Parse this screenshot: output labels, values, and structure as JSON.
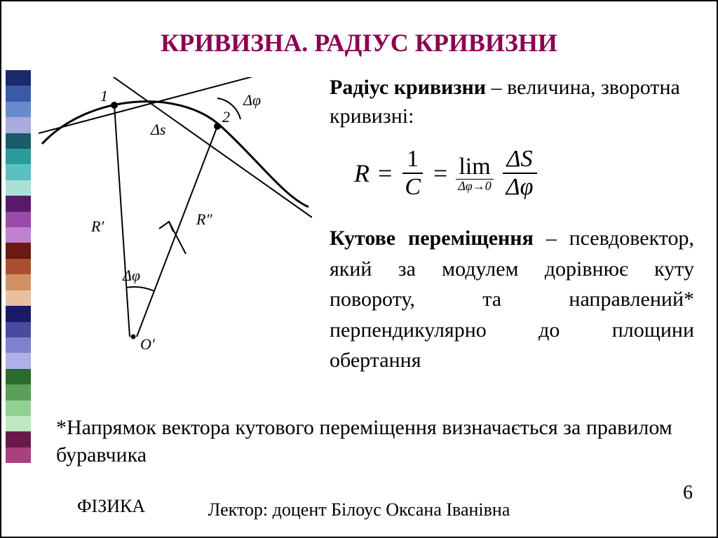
{
  "title": {
    "text": "КРИВИЗНА. РАДІУС КРИВИЗНИ",
    "color": "#8b0050"
  },
  "colorStrip": [
    "#1a2a6c",
    "#3a5aa8",
    "#6a8ad0",
    "#aaaadd",
    "#1a5a6a",
    "#2a9a9a",
    "#5ac0c0",
    "#aae0d8",
    "#5a1a6a",
    "#9a4aa8",
    "#c080d0",
    "#6a1a10",
    "#aa5030",
    "#d09060",
    "#e8c0a0",
    "#1a1a6a",
    "#4a4aa0",
    "#8080d0",
    "#b0b0e8",
    "#2a6a2a",
    "#5aa05a",
    "#90d090",
    "#c0e8c0",
    "#6a1a4a",
    "#aa4080"
  ],
  "definition": {
    "term": "Радіус кривизни",
    "rest": " – величина, зворотна кривизні:"
  },
  "formula": {
    "R": "R",
    "eq": "=",
    "one": "1",
    "C": "C",
    "lim_top": "lim",
    "lim_bot": "Δφ→0",
    "dS": "ΔS",
    "dPhi": "Δφ"
  },
  "angular": {
    "term": "Кутове переміщення",
    "rest": " – псевдовектор, який за модулем дорівнює куту повороту, та направ­лений* перпендикулярно до площини обертання"
  },
  "footnote": "*Напрямок вектора кутового переміщення визначається за правилом буравчика",
  "footer": {
    "left": "ФІЗИКА",
    "center": "Лектор: доцент Білоус Оксана Іванівна",
    "page": "6"
  },
  "diagram": {
    "labels": {
      "p1": "1",
      "p2": "2",
      "dphi_top": "Δφ",
      "ds": "Δs",
      "Rp": "R′",
      "Rpp": "R″",
      "dphi_bot": "Δφ",
      "Oprime": "O′"
    },
    "style": {
      "stroke": "#000000",
      "stroke_width": 2.2,
      "curve_width": 3
    }
  }
}
